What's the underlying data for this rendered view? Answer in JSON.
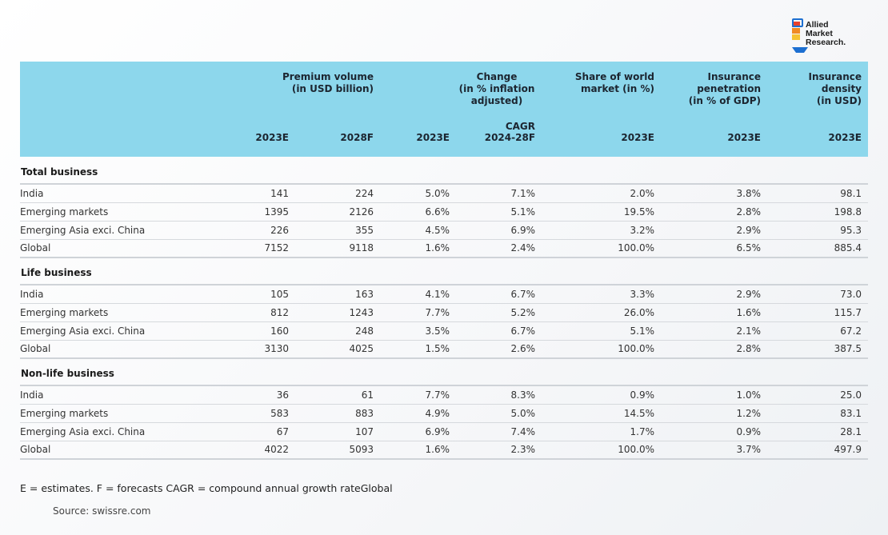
{
  "logo": {
    "text": "Allied\nMarket\nResearch."
  },
  "header": {
    "groups": {
      "premium": "Premium volume\n(in USD billion)",
      "change": "Change\n(in % inflation adjusted)",
      "share": "Share of world\nmarket (in %)",
      "penetration": "Insurance\npenetration\n(in % of GDP)",
      "density": "Insurance\ndensity\n(in USD)"
    },
    "years": [
      "2023E",
      "2028F",
      "2023E",
      "CAGR\n2024-28F",
      "2023E",
      "2023E",
      "2023E"
    ]
  },
  "sections": [
    {
      "title": "Total business",
      "rows": [
        [
          "India",
          "141",
          "224",
          "5.0%",
          "7.1%",
          "2.0%",
          "3.8%",
          "98.1"
        ],
        [
          "Emerging markets",
          "1395",
          "2126",
          "6.6%",
          "5.1%",
          "19.5%",
          "2.8%",
          "198.8"
        ],
        [
          "Emerging Asia exci. China",
          "226",
          "355",
          "4.5%",
          "6.9%",
          "3.2%",
          "2.9%",
          "95.3"
        ],
        [
          "Global",
          "7152",
          "9118",
          "1.6%",
          "2.4%",
          "100.0%",
          "6.5%",
          "885.4"
        ]
      ]
    },
    {
      "title": "Life business",
      "rows": [
        [
          "India",
          "105",
          "163",
          "4.1%",
          "6.7%",
          "3.3%",
          "2.9%",
          "73.0"
        ],
        [
          "Emerging markets",
          "812",
          "1243",
          "7.7%",
          "5.2%",
          "26.0%",
          "1.6%",
          "115.7"
        ],
        [
          "Emerging Asia exci. China",
          "160",
          "248",
          "3.5%",
          "6.7%",
          "5.1%",
          "2.1%",
          "67.2"
        ],
        [
          "Global",
          "3130",
          "4025",
          "1.5%",
          "2.6%",
          "100.0%",
          "2.8%",
          "387.5"
        ]
      ]
    },
    {
      "title": "Non-life business",
      "rows": [
        [
          "India",
          "36",
          "61",
          "7.7%",
          "8.3%",
          "0.9%",
          "1.0%",
          "25.0"
        ],
        [
          "Emerging markets",
          "583",
          "883",
          "4.9%",
          "5.0%",
          "14.5%",
          "1.2%",
          "83.1"
        ],
        [
          "Emerging Asia exci. China",
          "67",
          "107",
          "6.9%",
          "7.4%",
          "1.7%",
          "0.9%",
          "28.1"
        ],
        [
          "Global",
          "4022",
          "5093",
          "1.6%",
          "2.3%",
          "100.0%",
          "3.7%",
          "497.9"
        ]
      ]
    }
  ],
  "footnote": "E = estimates. F = forecasts CAGR = compound annual growth rateGlobal",
  "source": "Source: swissre.com",
  "colors": {
    "header_bg": "#8dd7ec",
    "logo_blue": "#1c6fd1"
  }
}
